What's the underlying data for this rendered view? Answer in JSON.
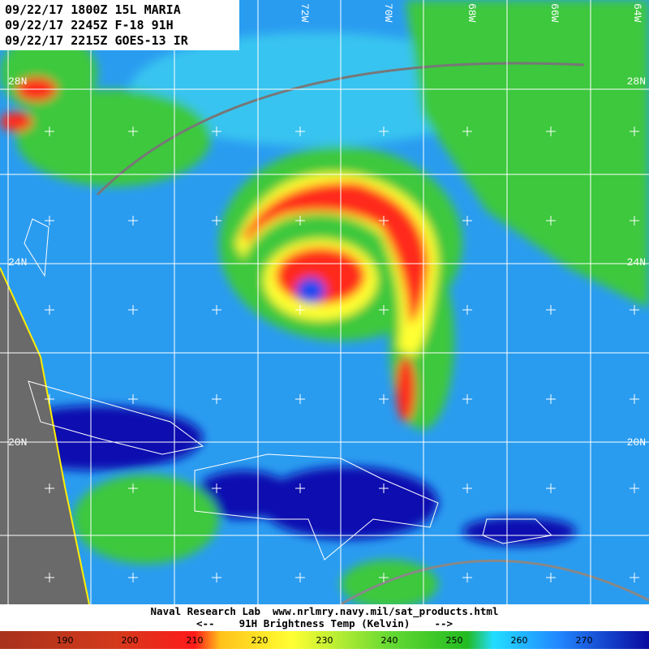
{
  "header": {
    "lines": [
      "09/22/17 1800Z 15L MARIA",
      "09/22/17 2245Z F-18 91H",
      "09/22/17 2215Z GOES-13 IR"
    ]
  },
  "map": {
    "longitude_labels": [
      "72W",
      "70W",
      "68W",
      "66W",
      "64W"
    ],
    "latitude_labels_left": [
      "28N",
      "24N",
      "20N"
    ],
    "latitude_labels_right": [
      "28N",
      "24N",
      "20N"
    ]
  },
  "footer": {
    "credit": "Naval Research Lab  www.nrlmry.navy.mil/sat_products.html",
    "caption": "<--    91H Brightness Temp (Kelvin)    -->"
  },
  "colorbar": {
    "labels": [
      190,
      200,
      210,
      220,
      230,
      240,
      250,
      260,
      270
    ]
  }
}
